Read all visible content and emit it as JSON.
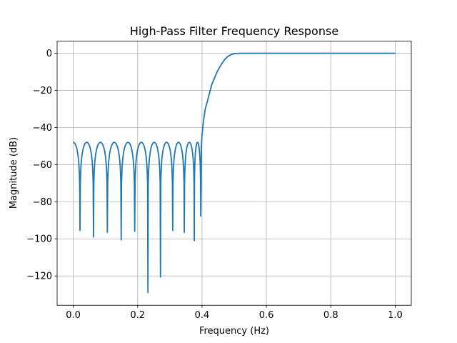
{
  "chart_data": {
    "type": "line",
    "title": "High-Pass Filter Frequency Response",
    "xlabel": "Frequency (Hz)",
    "ylabel": "Magnitude (dB)",
    "xlim": [
      -0.05,
      1.05
    ],
    "ylim": [
      -135.8,
      6.5
    ],
    "xticks": [
      0.0,
      0.2,
      0.4,
      0.6,
      0.8,
      1.0
    ],
    "xtick_labels": [
      "0.0",
      "0.2",
      "0.4",
      "0.6",
      "0.8",
      "1.0"
    ],
    "yticks": [
      0,
      -20,
      -40,
      -60,
      -80,
      -100,
      -120
    ],
    "ytick_labels": [
      "0",
      "−20",
      "−40",
      "−60",
      "−80",
      "−100",
      "−120"
    ],
    "grid": true,
    "line_color": "#1f77b4",
    "series": [
      {
        "stopband_peak_db": -48,
        "stopband_nulls": [
          [
            0.021,
            -95.5
          ],
          [
            0.063,
            -99
          ],
          [
            0.106,
            -96.5
          ],
          [
            0.149,
            -100.6
          ],
          [
            0.191,
            -96
          ],
          [
            0.232,
            -129
          ],
          [
            0.271,
            -120.6
          ],
          [
            0.309,
            -95.5
          ],
          [
            0.345,
            -96.5
          ],
          [
            0.376,
            -101
          ],
          [
            0.396,
            -87.8
          ]
        ],
        "transition_and_passband": [
          [
            0.398,
            -50
          ],
          [
            0.4,
            -44
          ],
          [
            0.405,
            -36
          ],
          [
            0.41,
            -30
          ],
          [
            0.418,
            -25
          ],
          [
            0.43,
            -17
          ],
          [
            0.447,
            -10
          ],
          [
            0.46,
            -6
          ],
          [
            0.47,
            -3.5
          ],
          [
            0.48,
            -1.8
          ],
          [
            0.49,
            -0.8
          ],
          [
            0.5,
            -0.2
          ],
          [
            0.52,
            0
          ],
          [
            1.0,
            0
          ]
        ]
      }
    ]
  }
}
